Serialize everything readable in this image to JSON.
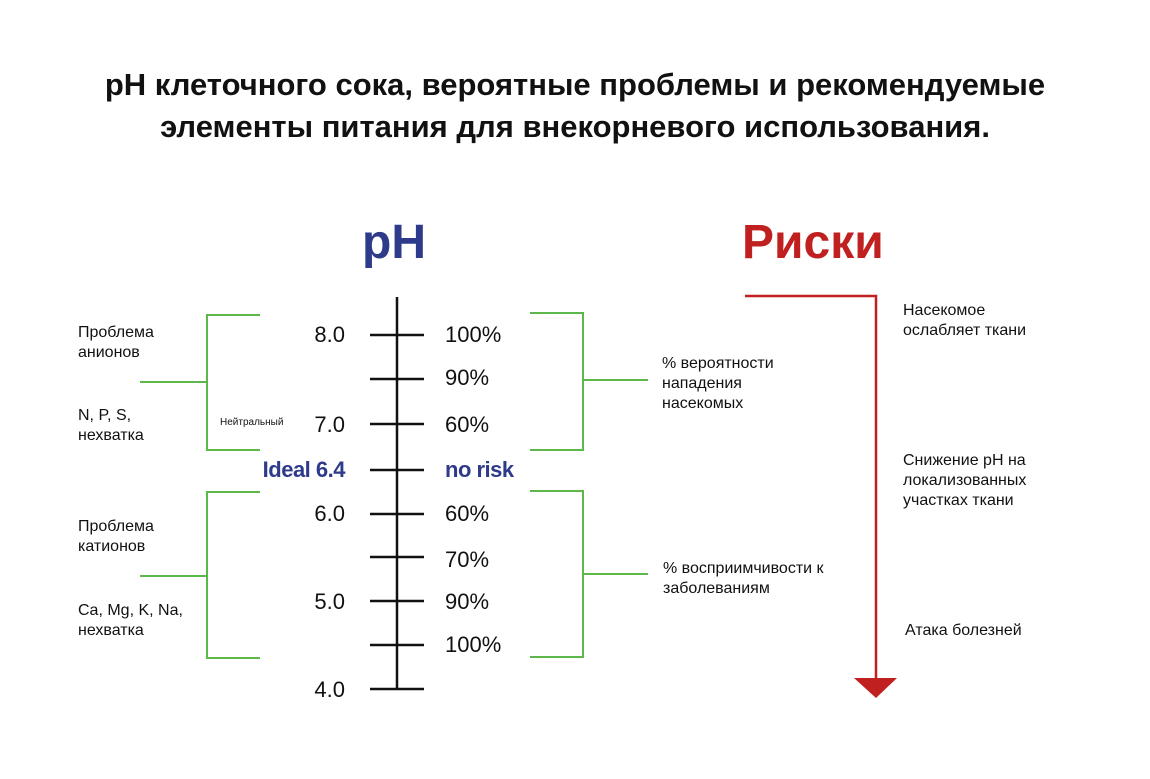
{
  "title": [
    "pH клеточного сока, вероятные проблемы и рекомендуемые",
    "элементы питания для внекорневого использования."
  ],
  "headers": {
    "ph": "pH",
    "risks": "Риски"
  },
  "colors": {
    "blue": "#2e3a8a",
    "red": "#c0201f",
    "green": "#5cb84a",
    "axis": "#111111"
  },
  "scale": {
    "ph_labels": [
      "8.0",
      "7.0",
      "Ideal 6.4",
      "6.0",
      "5.0",
      "4.0"
    ],
    "neutral_label": "Нейтральный",
    "percent_labels": [
      "100%",
      "90%",
      "60%",
      "no risk",
      "60%",
      "70%",
      "90%",
      "100%"
    ]
  },
  "left": {
    "upper": [
      "Проблема анионов",
      "N, P, S, нехватка"
    ],
    "lower": [
      "Проблема катионов",
      "Ca, Mg, K, Na, нехватка"
    ]
  },
  "middle": {
    "upper": "% вероятности нападения насекомых",
    "lower": "% восприимчивости к заболеваниям"
  },
  "risks": [
    "Насекомое ослабляет ткани",
    "Снижение pH на локализованных участках ткани",
    "Атака болезней"
  ]
}
